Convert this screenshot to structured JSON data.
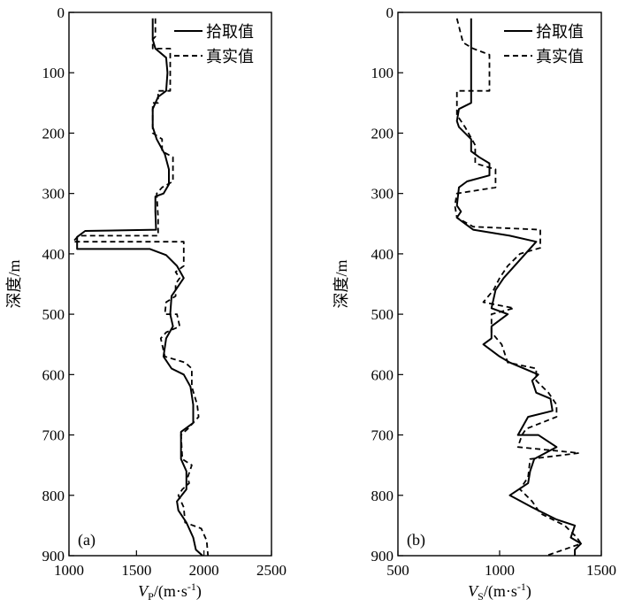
{
  "chart_data": [
    {
      "type": "line",
      "panel_label": "(a)",
      "ylabel": "深度/m",
      "xlabel_main": "V",
      "xlabel_sub": "P",
      "xlabel_units": "/(m·s",
      "xlabel_exp": "-1",
      "xlabel_close": ")",
      "xlim": [
        1000,
        2500
      ],
      "ylim": [
        0,
        900
      ],
      "y_inverted": true,
      "xticks": [
        1000,
        1500,
        2000,
        2500
      ],
      "yticks": [
        0,
        100,
        200,
        300,
        400,
        500,
        600,
        700,
        800,
        900
      ],
      "legend_position": "top-right",
      "series": [
        {
          "name": "拾取值",
          "style": "solid",
          "points": [
            [
              1620,
              10
            ],
            [
              1620,
              45
            ],
            [
              1640,
              60
            ],
            [
              1720,
              75
            ],
            [
              1730,
              100
            ],
            [
              1720,
              130
            ],
            [
              1660,
              140
            ],
            [
              1620,
              160
            ],
            [
              1620,
              190
            ],
            [
              1650,
              210
            ],
            [
              1710,
              235
            ],
            [
              1740,
              260
            ],
            [
              1740,
              285
            ],
            [
              1700,
              300
            ],
            [
              1640,
              305
            ],
            [
              1640,
              330
            ],
            [
              1645,
              360
            ],
            [
              1120,
              362
            ],
            [
              1060,
              372
            ],
            [
              1060,
              392
            ],
            [
              1600,
              392
            ],
            [
              1720,
              402
            ],
            [
              1800,
              420
            ],
            [
              1850,
              440
            ],
            [
              1790,
              460
            ],
            [
              1760,
              470
            ],
            [
              1750,
              500
            ],
            [
              1770,
              520
            ],
            [
              1720,
              540
            ],
            [
              1700,
              570
            ],
            [
              1760,
              590
            ],
            [
              1850,
              600
            ],
            [
              1900,
              620
            ],
            [
              1920,
              650
            ],
            [
              1920,
              680
            ],
            [
              1830,
              695
            ],
            [
              1830,
              740
            ],
            [
              1870,
              760
            ],
            [
              1870,
              790
            ],
            [
              1800,
              810
            ],
            [
              1810,
              825
            ],
            [
              1870,
              845
            ],
            [
              1920,
              870
            ],
            [
              1940,
              890
            ],
            [
              1990,
              905
            ]
          ]
        },
        {
          "name": "真实值",
          "style": "dashed",
          "points": [
            [
              1640,
              10
            ],
            [
              1640,
              40
            ],
            [
              1620,
              45
            ],
            [
              1620,
              60
            ],
            [
              1750,
              60
            ],
            [
              1750,
              130
            ],
            [
              1660,
              130
            ],
            [
              1660,
              150
            ],
            [
              1620,
              150
            ],
            [
              1620,
              200
            ],
            [
              1690,
              210
            ],
            [
              1690,
              230
            ],
            [
              1770,
              240
            ],
            [
              1770,
              280
            ],
            [
              1690,
              290
            ],
            [
              1650,
              300
            ],
            [
              1660,
              340
            ],
            [
              1660,
              370
            ],
            [
              1070,
              370
            ],
            [
              1030,
              380
            ],
            [
              1850,
              380
            ],
            [
              1850,
              420
            ],
            [
              1790,
              430
            ],
            [
              1820,
              440
            ],
            [
              1790,
              450
            ],
            [
              1790,
              470
            ],
            [
              1720,
              480
            ],
            [
              1710,
              500
            ],
            [
              1800,
              500
            ],
            [
              1820,
              520
            ],
            [
              1720,
              530
            ],
            [
              1680,
              540
            ],
            [
              1710,
              570
            ],
            [
              1860,
              580
            ],
            [
              1910,
              590
            ],
            [
              1910,
              620
            ],
            [
              1950,
              650
            ],
            [
              1960,
              670
            ],
            [
              1880,
              690
            ],
            [
              1830,
              700
            ],
            [
              1840,
              740
            ],
            [
              1910,
              750
            ],
            [
              1880,
              770
            ],
            [
              1890,
              780
            ],
            [
              1840,
              790
            ],
            [
              1810,
              800
            ],
            [
              1850,
              820
            ],
            [
              1860,
              845
            ],
            [
              1980,
              855
            ],
            [
              2020,
              875
            ],
            [
              2030,
              905
            ]
          ]
        }
      ]
    },
    {
      "type": "line",
      "panel_label": "(b)",
      "ylabel": "深度/m",
      "xlabel_main": "V",
      "xlabel_sub": "S",
      "xlabel_units": "/(m·s",
      "xlabel_exp": "-1",
      "xlabel_close": ")",
      "xlim": [
        500,
        1500
      ],
      "ylim": [
        0,
        900
      ],
      "y_inverted": true,
      "xticks": [
        500,
        1000,
        1500
      ],
      "yticks": [
        0,
        100,
        200,
        300,
        400,
        500,
        600,
        700,
        800,
        900
      ],
      "legend_position": "top-right",
      "series": [
        {
          "name": "拾取值",
          "style": "solid",
          "points": [
            [
              860,
              10
            ],
            [
              860,
              150
            ],
            [
              800,
              160
            ],
            [
              790,
              180
            ],
            [
              800,
              190
            ],
            [
              860,
              210
            ],
            [
              860,
              230
            ],
            [
              900,
              240
            ],
            [
              950,
              250
            ],
            [
              950,
              270
            ],
            [
              840,
              280
            ],
            [
              800,
              290
            ],
            [
              790,
              320
            ],
            [
              810,
              330
            ],
            [
              790,
              340
            ],
            [
              870,
              360
            ],
            [
              1050,
              370
            ],
            [
              1180,
              380
            ],
            [
              1100,
              410
            ],
            [
              1020,
              440
            ],
            [
              980,
              460
            ],
            [
              960,
              490
            ],
            [
              1040,
              500
            ],
            [
              960,
              520
            ],
            [
              960,
              540
            ],
            [
              920,
              550
            ],
            [
              1000,
              570
            ],
            [
              1050,
              580
            ],
            [
              1190,
              600
            ],
            [
              1160,
              610
            ],
            [
              1180,
              630
            ],
            [
              1250,
              640
            ],
            [
              1260,
              660
            ],
            [
              1140,
              670
            ],
            [
              1090,
              700
            ],
            [
              1190,
              700
            ],
            [
              1280,
              720
            ],
            [
              1170,
              740
            ],
            [
              1150,
              760
            ],
            [
              1140,
              780
            ],
            [
              1050,
              800
            ],
            [
              1160,
              820
            ],
            [
              1280,
              840
            ],
            [
              1370,
              850
            ],
            [
              1350,
              870
            ],
            [
              1400,
              880
            ],
            [
              1370,
              890
            ],
            [
              1370,
              905
            ]
          ]
        },
        {
          "name": "真实值",
          "style": "dashed",
          "points": [
            [
              790,
              10
            ],
            [
              820,
              50
            ],
            [
              870,
              60
            ],
            [
              950,
              70
            ],
            [
              950,
              130
            ],
            [
              870,
              130
            ],
            [
              790,
              130
            ],
            [
              790,
              170
            ],
            [
              830,
              190
            ],
            [
              880,
              220
            ],
            [
              880,
              250
            ],
            [
              980,
              260
            ],
            [
              980,
              290
            ],
            [
              790,
              300
            ],
            [
              780,
              320
            ],
            [
              790,
              340
            ],
            [
              870,
              355
            ],
            [
              1200,
              360
            ],
            [
              1200,
              390
            ],
            [
              1100,
              400
            ],
            [
              1040,
              420
            ],
            [
              1000,
              440
            ],
            [
              970,
              460
            ],
            [
              920,
              480
            ],
            [
              1070,
              490
            ],
            [
              960,
              500
            ],
            [
              960,
              530
            ],
            [
              1010,
              550
            ],
            [
              1040,
              580
            ],
            [
              1180,
              590
            ],
            [
              1180,
              610
            ],
            [
              1240,
              630
            ],
            [
              1280,
              650
            ],
            [
              1280,
              670
            ],
            [
              1130,
              690
            ],
            [
              1110,
              700
            ],
            [
              1090,
              720
            ],
            [
              1390,
              730
            ],
            [
              1150,
              740
            ],
            [
              1140,
              770
            ],
            [
              1100,
              790
            ],
            [
              1160,
              810
            ],
            [
              1200,
              830
            ],
            [
              1320,
              850
            ],
            [
              1380,
              870
            ],
            [
              1400,
              880
            ],
            [
              1230,
              905
            ]
          ]
        }
      ]
    }
  ]
}
